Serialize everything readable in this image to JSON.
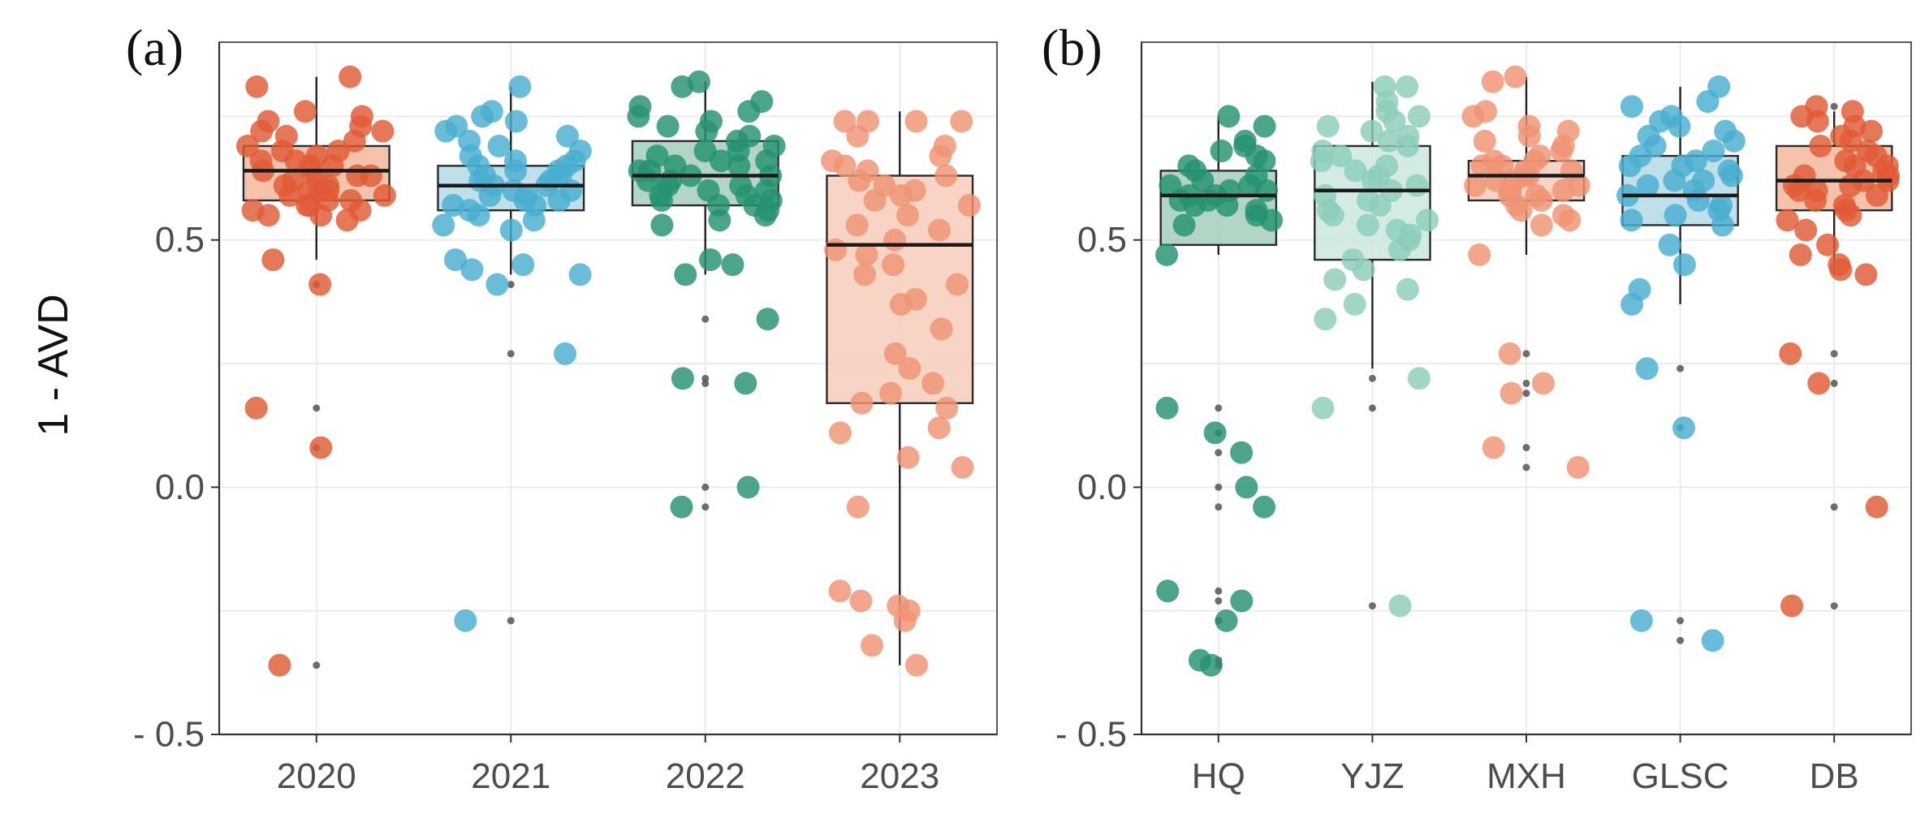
{
  "y_label": "1 - AVD",
  "chart_data": [
    {
      "type": "box",
      "panel_label": "(a)",
      "ylabel": "1 - AVD",
      "ylim": [
        -0.5,
        0.9
      ],
      "yticks": [
        -0.5,
        0.0,
        0.5
      ],
      "ytick_labels": [
        "- 0.5",
        "0.0",
        "0.5"
      ],
      "grid": true,
      "categories": [
        "2020",
        "2021",
        "2022",
        "2023"
      ],
      "colors": [
        "#E05A36",
        "#48AECF",
        "#259170",
        "#EF9474"
      ],
      "box_fill_colors": [
        "#F3B89D",
        "#B4D9E8",
        "#A4CEBB",
        "#F6CDB9"
      ],
      "boxes": [
        {
          "q1": 0.58,
          "median": 0.64,
          "q3": 0.69,
          "whisker_low": 0.46,
          "whisker_high": 0.83
        },
        {
          "q1": 0.56,
          "median": 0.61,
          "q3": 0.65,
          "whisker_low": 0.43,
          "whisker_high": 0.81
        },
        {
          "q1": 0.57,
          "median": 0.63,
          "q3": 0.7,
          "whisker_low": 0.43,
          "whisker_high": 0.82
        },
        {
          "q1": 0.17,
          "median": 0.49,
          "q3": 0.63,
          "whisker_low": -0.36,
          "whisker_high": 0.76
        }
      ],
      "points": [
        [
          0.83,
          0.81,
          0.76,
          0.75,
          0.74,
          0.73,
          0.72,
          0.72,
          0.71,
          0.7,
          0.69,
          0.68,
          0.68,
          0.67,
          0.66,
          0.66,
          0.65,
          0.65,
          0.64,
          0.64,
          0.63,
          0.63,
          0.62,
          0.62,
          0.61,
          0.61,
          0.6,
          0.6,
          0.6,
          0.59,
          0.59,
          0.58,
          0.58,
          0.57,
          0.57,
          0.56,
          0.56,
          0.55,
          0.55,
          0.54,
          0.46,
          0.41,
          0.16,
          0.08,
          -0.36
        ],
        [
          0.81,
          0.76,
          0.75,
          0.74,
          0.73,
          0.72,
          0.71,
          0.7,
          0.69,
          0.68,
          0.67,
          0.66,
          0.66,
          0.65,
          0.65,
          0.64,
          0.64,
          0.63,
          0.63,
          0.62,
          0.62,
          0.61,
          0.61,
          0.6,
          0.6,
          0.59,
          0.59,
          0.58,
          0.58,
          0.57,
          0.57,
          0.56,
          0.55,
          0.54,
          0.53,
          0.52,
          0.46,
          0.45,
          0.44,
          0.43,
          0.41,
          0.27,
          -0.27
        ],
        [
          0.82,
          0.81,
          0.78,
          0.77,
          0.76,
          0.75,
          0.74,
          0.73,
          0.72,
          0.71,
          0.7,
          0.69,
          0.68,
          0.68,
          0.67,
          0.66,
          0.66,
          0.65,
          0.65,
          0.64,
          0.64,
          0.63,
          0.63,
          0.62,
          0.62,
          0.61,
          0.61,
          0.6,
          0.6,
          0.59,
          0.59,
          0.58,
          0.58,
          0.57,
          0.57,
          0.56,
          0.55,
          0.54,
          0.53,
          0.46,
          0.45,
          0.43,
          0.34,
          0.22,
          0.21,
          0.0,
          -0.04
        ],
        [
          0.74,
          0.74,
          0.74,
          0.74,
          0.71,
          0.69,
          0.67,
          0.66,
          0.65,
          0.64,
          0.63,
          0.62,
          0.61,
          0.6,
          0.59,
          0.58,
          0.57,
          0.55,
          0.53,
          0.52,
          0.5,
          0.48,
          0.47,
          0.45,
          0.43,
          0.41,
          0.38,
          0.37,
          0.32,
          0.27,
          0.24,
          0.21,
          0.19,
          0.17,
          0.16,
          0.12,
          0.11,
          0.06,
          0.04,
          -0.04,
          -0.21,
          -0.23,
          -0.24,
          -0.25,
          -0.27,
          -0.32,
          -0.36
        ]
      ]
    },
    {
      "type": "box",
      "panel_label": "(b)",
      "ylabel": "",
      "ylim": [
        -0.5,
        0.9
      ],
      "yticks": [
        -0.5,
        0.0,
        0.5
      ],
      "ytick_labels": [
        "- 0.5",
        "0.0",
        "0.5"
      ],
      "grid": true,
      "categories": [
        "HQ",
        "YJZ",
        "MXH",
        "GLSC",
        "DB"
      ],
      "colors": [
        "#259170",
        "#8CCDBB",
        "#EF9474",
        "#48AECF",
        "#E05A36"
      ],
      "box_fill_colors": [
        "#A4CEBB",
        "#CDE7E0",
        "#F6CDB9",
        "#B4D9E8",
        "#F3B89D"
      ],
      "boxes": [
        {
          "q1": 0.49,
          "median": 0.59,
          "q3": 0.64,
          "whisker_low": 0.47,
          "whisker_high": 0.75
        },
        {
          "q1": 0.46,
          "median": 0.6,
          "q3": 0.69,
          "whisker_low": 0.24,
          "whisker_high": 0.82
        },
        {
          "q1": 0.58,
          "median": 0.63,
          "q3": 0.66,
          "whisker_low": 0.47,
          "whisker_high": 0.83
        },
        {
          "q1": 0.53,
          "median": 0.59,
          "q3": 0.67,
          "whisker_low": 0.37,
          "whisker_high": 0.81
        },
        {
          "q1": 0.56,
          "median": 0.62,
          "q3": 0.69,
          "whisker_low": 0.43,
          "whisker_high": 0.76
        }
      ],
      "points": [
        [
          0.75,
          0.73,
          0.7,
          0.69,
          0.68,
          0.67,
          0.66,
          0.65,
          0.64,
          0.63,
          0.62,
          0.61,
          0.61,
          0.6,
          0.6,
          0.59,
          0.59,
          0.58,
          0.58,
          0.57,
          0.57,
          0.56,
          0.55,
          0.54,
          0.53,
          0.47,
          0.16,
          0.11,
          0.07,
          0.0,
          -0.04,
          -0.21,
          -0.23,
          -0.27,
          -0.35,
          -0.36
        ],
        [
          0.81,
          0.81,
          0.78,
          0.76,
          0.75,
          0.74,
          0.73,
          0.72,
          0.71,
          0.7,
          0.69,
          0.68,
          0.67,
          0.66,
          0.65,
          0.64,
          0.63,
          0.62,
          0.61,
          0.6,
          0.59,
          0.58,
          0.57,
          0.56,
          0.55,
          0.54,
          0.53,
          0.52,
          0.51,
          0.5,
          0.48,
          0.46,
          0.44,
          0.42,
          0.4,
          0.37,
          0.34,
          0.22,
          0.16,
          -0.24
        ],
        [
          0.83,
          0.82,
          0.76,
          0.75,
          0.73,
          0.72,
          0.71,
          0.7,
          0.69,
          0.68,
          0.67,
          0.66,
          0.66,
          0.65,
          0.65,
          0.64,
          0.64,
          0.63,
          0.63,
          0.62,
          0.62,
          0.61,
          0.61,
          0.6,
          0.6,
          0.59,
          0.59,
          0.58,
          0.57,
          0.56,
          0.55,
          0.54,
          0.53,
          0.47,
          0.27,
          0.21,
          0.19,
          0.08,
          0.04
        ],
        [
          0.81,
          0.78,
          0.77,
          0.75,
          0.74,
          0.73,
          0.72,
          0.71,
          0.7,
          0.69,
          0.68,
          0.67,
          0.66,
          0.65,
          0.65,
          0.64,
          0.63,
          0.62,
          0.62,
          0.61,
          0.6,
          0.59,
          0.58,
          0.57,
          0.56,
          0.55,
          0.54,
          0.53,
          0.49,
          0.45,
          0.4,
          0.37,
          0.24,
          0.12,
          -0.27,
          -0.31
        ],
        [
          0.77,
          0.76,
          0.75,
          0.74,
          0.73,
          0.72,
          0.71,
          0.7,
          0.69,
          0.68,
          0.67,
          0.66,
          0.65,
          0.65,
          0.64,
          0.63,
          0.63,
          0.62,
          0.62,
          0.61,
          0.61,
          0.6,
          0.6,
          0.59,
          0.58,
          0.57,
          0.56,
          0.55,
          0.54,
          0.52,
          0.49,
          0.47,
          0.45,
          0.44,
          0.43,
          0.27,
          0.21,
          -0.04,
          -0.24
        ]
      ]
    }
  ]
}
